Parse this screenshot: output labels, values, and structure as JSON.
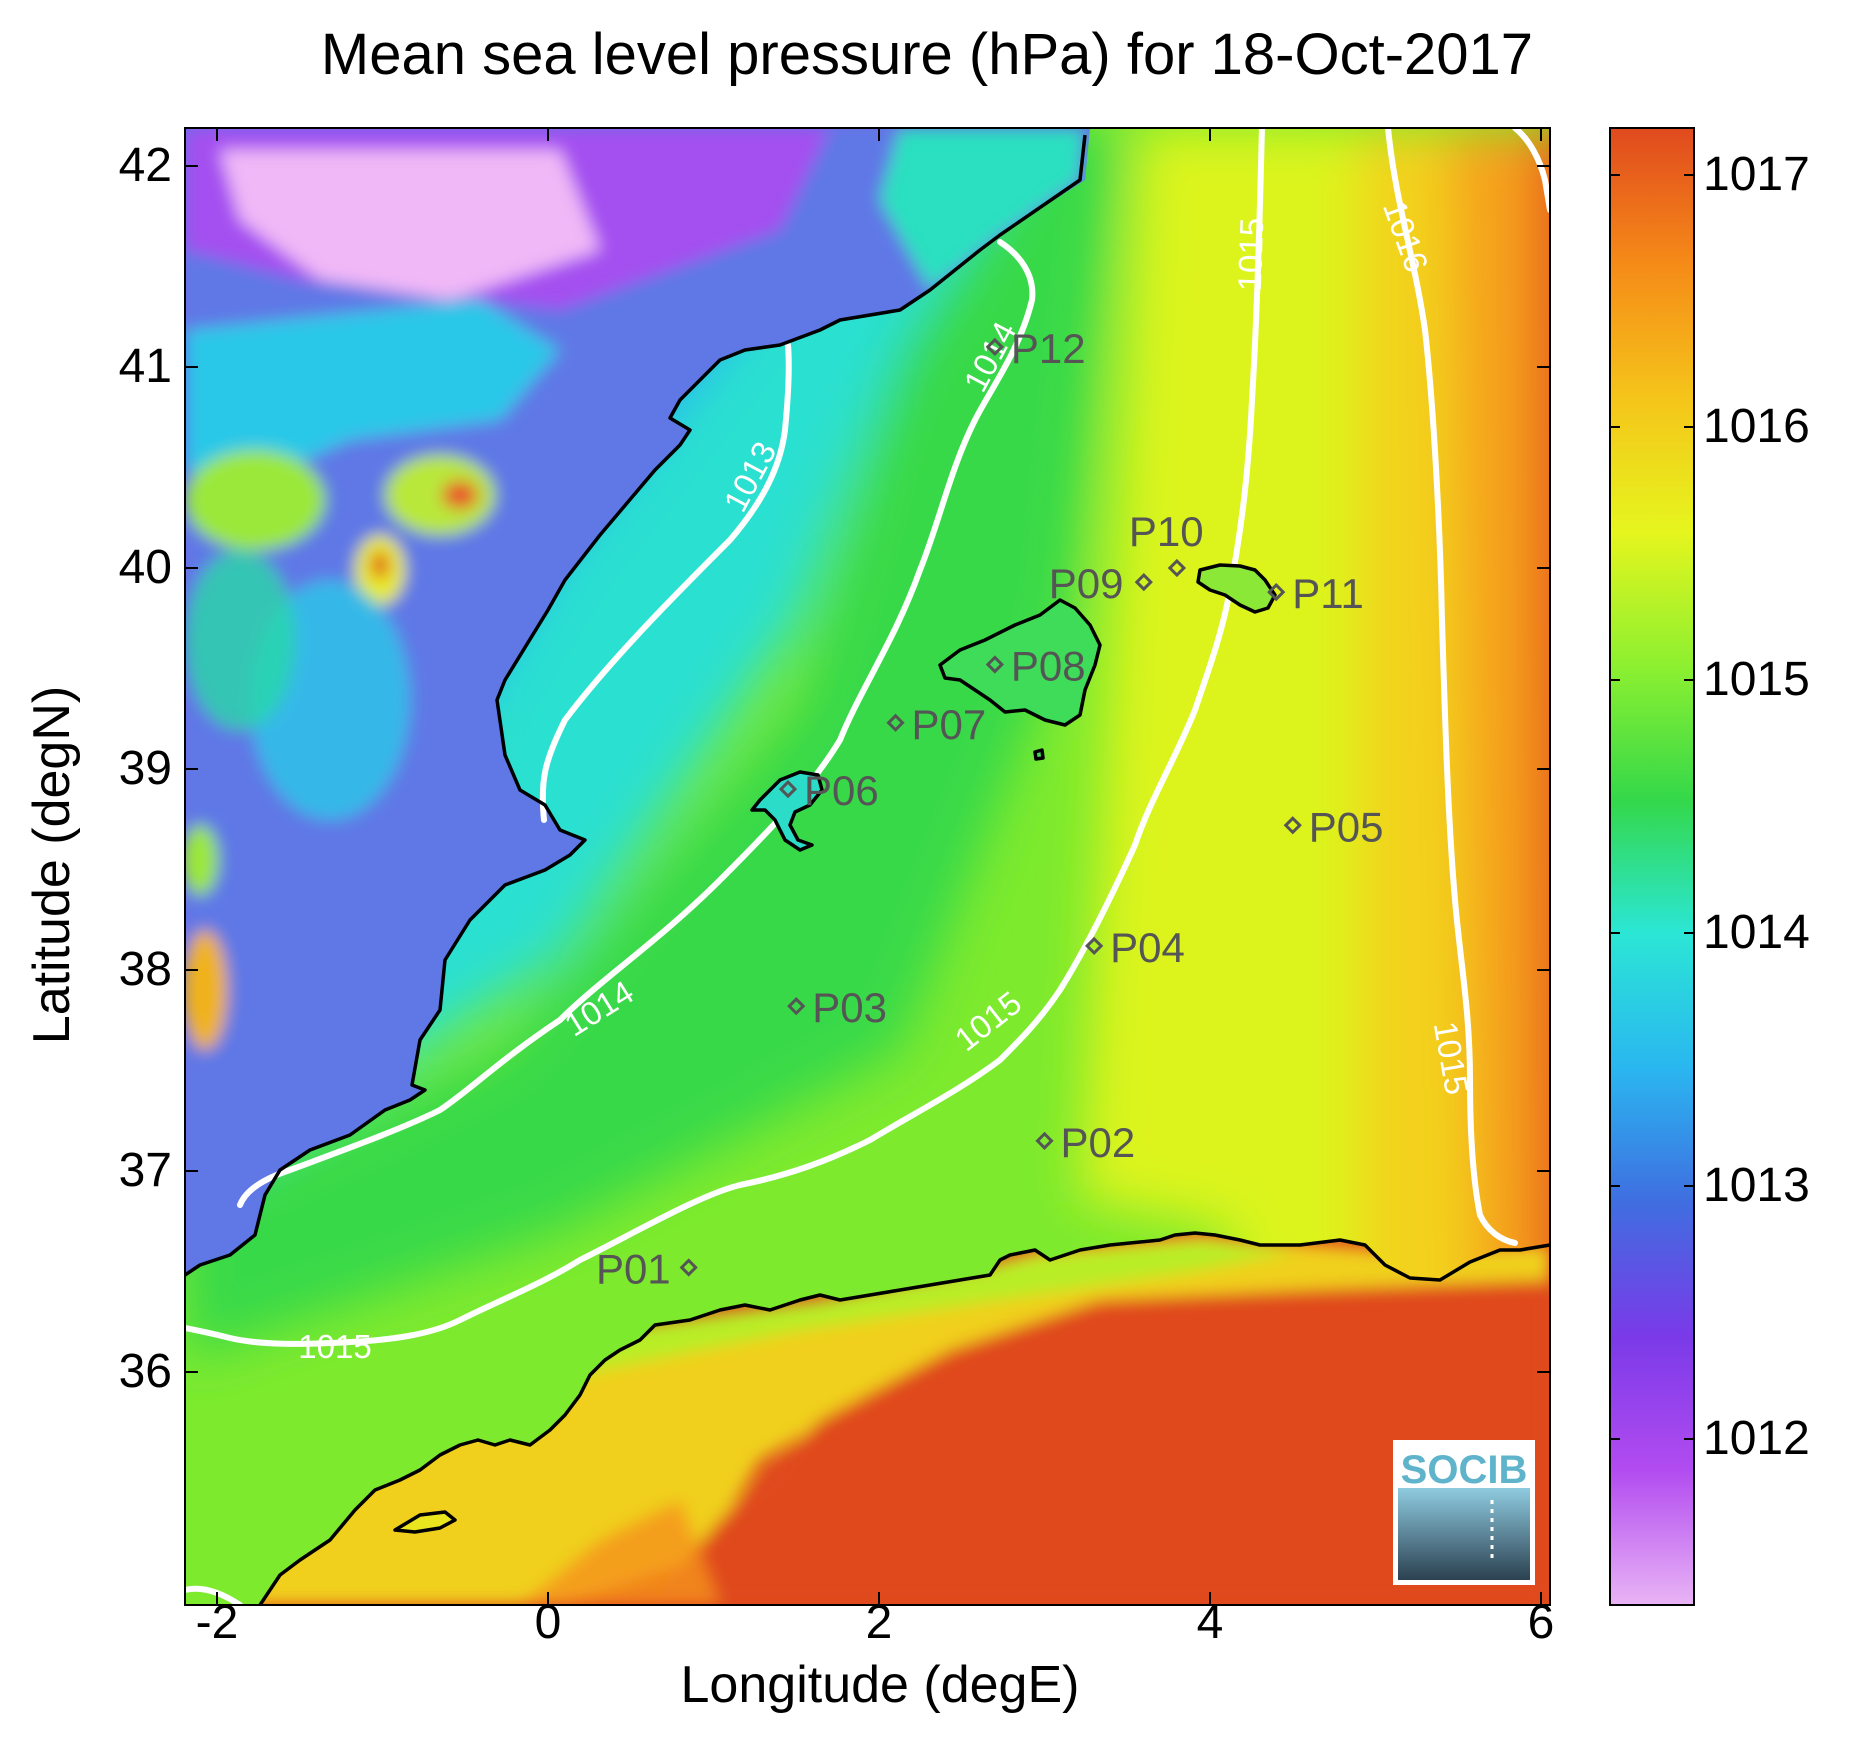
{
  "title": "Mean sea level pressure (hPa) for 18-Oct-2017",
  "xlabel": "Longitude (degE)",
  "ylabel": "Latitude (degN)",
  "x_ticks": [
    "-2",
    "0",
    "2",
    "4",
    "6"
  ],
  "y_ticks": [
    "42",
    "41",
    "40",
    "39",
    "38",
    "37",
    "36"
  ],
  "colorbar_ticks": [
    "1017",
    "1016",
    "1015",
    "1014",
    "1013",
    "1012"
  ],
  "contour_labels": [
    "1013",
    "1014",
    "1014",
    "1015",
    "1015",
    "1015",
    "1015",
    "1016",
    "1016"
  ],
  "stations": [
    {
      "id": "P01",
      "lon": 0.85,
      "lat": 36.52
    },
    {
      "id": "P02",
      "lon": 3.0,
      "lat": 37.15
    },
    {
      "id": "P03",
      "lon": 1.5,
      "lat": 37.82
    },
    {
      "id": "P04",
      "lon": 3.3,
      "lat": 38.12
    },
    {
      "id": "P05",
      "lon": 4.5,
      "lat": 38.72
    },
    {
      "id": "P06",
      "lon": 1.45,
      "lat": 38.9
    },
    {
      "id": "P07",
      "lon": 2.1,
      "lat": 39.23
    },
    {
      "id": "P08",
      "lon": 2.7,
      "lat": 39.52
    },
    {
      "id": "P09",
      "lon": 3.6,
      "lat": 39.93
    },
    {
      "id": "P10",
      "lon": 3.8,
      "lat": 40.0
    },
    {
      "id": "P11",
      "lon": 4.4,
      "lat": 39.88
    },
    {
      "id": "P12",
      "lon": 2.7,
      "lat": 41.1
    }
  ],
  "logo_text": "SOCIB",
  "colors": {
    "colormap": [
      "#e9b4f5",
      "#b24cf0",
      "#7a3ae8",
      "#3f6ee0",
      "#2ab7f0",
      "#2be6d5",
      "#34d84a",
      "#8df030",
      "#e6f51e",
      "#f5c41a",
      "#f58a18",
      "#e04a1e"
    ],
    "contour": "#ffffff",
    "coastline": "#000000",
    "station": "#555555"
  },
  "chart_data": {
    "type": "heatmap",
    "title": "Mean sea level pressure (hPa) for 18-Oct-2017",
    "xlabel": "Longitude (degE)",
    "ylabel": "Latitude (degN)",
    "xlim": [
      -2.2,
      6.1
    ],
    "ylim": [
      35.1,
      42.2
    ],
    "colorbar_range": [
      1011.4,
      1017.3
    ],
    "contour_levels": [
      1013,
      1014,
      1015,
      1016
    ]
  }
}
